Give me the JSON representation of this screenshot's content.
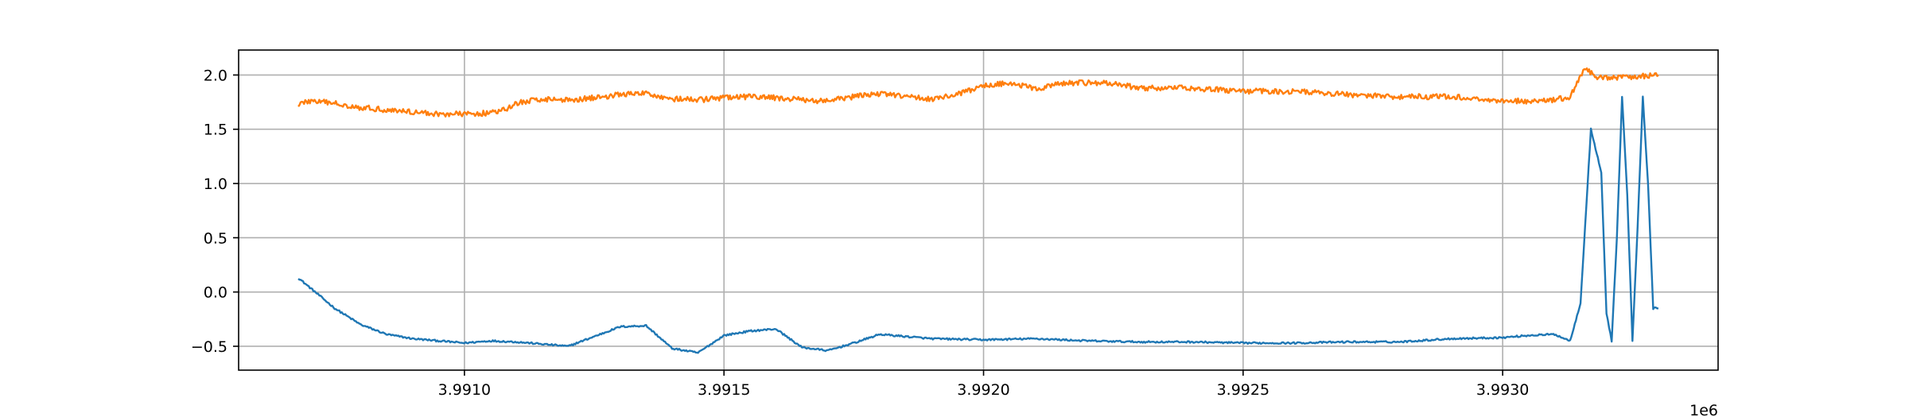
{
  "chart_data": {
    "type": "line",
    "title": "",
    "xlabel": "",
    "ylabel": "",
    "x_offset_label": "1e6",
    "xlim": [
      3.990565,
      3.993415
    ],
    "ylim": [
      -0.72,
      2.23
    ],
    "grid": true,
    "legend": "none",
    "x_ticks": [
      {
        "value": 3.991,
        "label": "3.9910"
      },
      {
        "value": 3.9915,
        "label": "3.9915"
      },
      {
        "value": 3.992,
        "label": "3.9920"
      },
      {
        "value": 3.9925,
        "label": "3.9925"
      },
      {
        "value": 3.993,
        "label": "3.9930"
      }
    ],
    "y_ticks": [
      {
        "value": -0.5,
        "label": "−0.5"
      },
      {
        "value": 0.0,
        "label": "0.0"
      },
      {
        "value": 0.5,
        "label": "0.5"
      },
      {
        "value": 1.0,
        "label": "1.0"
      },
      {
        "value": 1.5,
        "label": "1.5"
      },
      {
        "value": 2.0,
        "label": "2.0"
      }
    ],
    "series": [
      {
        "color": "#1f77b4",
        "noise": 0.008,
        "x": [
          3.99068,
          3.9907,
          3.99075,
          3.9908,
          3.99085,
          3.9909,
          3.99095,
          3.991,
          3.99105,
          3.9911,
          3.99115,
          3.9912,
          3.99125,
          3.9913,
          3.99135,
          3.9914,
          3.99145,
          3.9915,
          3.99155,
          3.9916,
          3.99165,
          3.9917,
          3.99175,
          3.9918,
          3.9919,
          3.992,
          3.9921,
          3.9922,
          3.9923,
          3.9924,
          3.9925,
          3.9926,
          3.9927,
          3.9928,
          3.9929,
          3.993,
          3.99305,
          3.9931,
          3.99313,
          3.99315,
          3.99317,
          3.99319,
          3.9932,
          3.99321,
          3.99322,
          3.99323,
          3.99324,
          3.99325,
          3.99326,
          3.99327,
          3.99328,
          3.99329,
          3.9933
        ],
        "y": [
          0.13,
          0.05,
          -0.15,
          -0.3,
          -0.39,
          -0.43,
          -0.45,
          -0.47,
          -0.45,
          -0.46,
          -0.48,
          -0.5,
          -0.41,
          -0.32,
          -0.31,
          -0.52,
          -0.56,
          -0.4,
          -0.36,
          -0.34,
          -0.51,
          -0.54,
          -0.47,
          -0.39,
          -0.43,
          -0.44,
          -0.43,
          -0.45,
          -0.46,
          -0.46,
          -0.47,
          -0.47,
          -0.46,
          -0.46,
          -0.43,
          -0.42,
          -0.4,
          -0.39,
          -0.45,
          -0.1,
          1.5,
          1.1,
          -0.2,
          -0.45,
          0.5,
          1.8,
          0.9,
          -0.45,
          0.6,
          1.8,
          1.0,
          -0.15,
          -0.15
        ]
      },
      {
        "color": "#ff7f0e",
        "noise": 0.025,
        "x": [
          3.99068,
          3.9907,
          3.99075,
          3.9908,
          3.99085,
          3.9909,
          3.99095,
          3.991,
          3.99105,
          3.99108,
          3.9911,
          3.99115,
          3.9912,
          3.99125,
          3.9913,
          3.99135,
          3.9914,
          3.99145,
          3.9915,
          3.99155,
          3.9916,
          3.99165,
          3.9917,
          3.99175,
          3.9918,
          3.99185,
          3.9919,
          3.99195,
          3.992,
          3.99205,
          3.9921,
          3.99215,
          3.9922,
          3.99225,
          3.9923,
          3.9924,
          3.9925,
          3.9926,
          3.9927,
          3.9928,
          3.9929,
          3.993,
          3.99305,
          3.9931,
          3.99313,
          3.99315,
          3.99316,
          3.99318,
          3.9932,
          3.99325,
          3.9933
        ],
        "y": [
          1.73,
          1.76,
          1.74,
          1.7,
          1.68,
          1.66,
          1.64,
          1.64,
          1.65,
          1.68,
          1.74,
          1.78,
          1.77,
          1.79,
          1.82,
          1.83,
          1.78,
          1.77,
          1.79,
          1.8,
          1.79,
          1.77,
          1.76,
          1.8,
          1.83,
          1.8,
          1.78,
          1.82,
          1.9,
          1.93,
          1.87,
          1.92,
          1.93,
          1.92,
          1.88,
          1.88,
          1.85,
          1.85,
          1.82,
          1.8,
          1.8,
          1.76,
          1.76,
          1.77,
          1.8,
          1.98,
          2.07,
          1.98,
          1.97,
          1.98,
          2.0
        ]
      }
    ]
  }
}
